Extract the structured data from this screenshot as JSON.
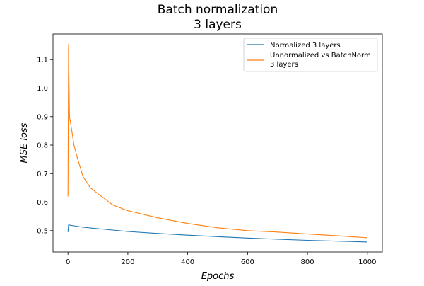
{
  "chart_data": {
    "type": "line",
    "title": "Batch normalization\n3 layers",
    "title_lines": [
      "Batch normalization",
      "3 layers"
    ],
    "xlabel": "Epochs",
    "ylabel": "MSE loss",
    "xlim": [
      -50,
      1050
    ],
    "ylim": [
      0.425,
      1.19
    ],
    "xticks": [
      0,
      200,
      400,
      600,
      800,
      1000
    ],
    "yticks": [
      0.5,
      0.6,
      0.7,
      0.8,
      0.9,
      1.0,
      1.1
    ],
    "ytick_labels": [
      "0.5",
      "0.6",
      "0.7",
      "0.8",
      "0.9",
      "1.0",
      "1.1"
    ],
    "grid": false,
    "legend_position": "top-right",
    "series": [
      {
        "name": "Normalized 3 layers",
        "color": "#1f77b4",
        "x": [
          0,
          2,
          20,
          50,
          100,
          200,
          300,
          400,
          500,
          600,
          700,
          800,
          900,
          1000
        ],
        "y": [
          0.495,
          0.52,
          0.517,
          0.512,
          0.507,
          0.497,
          0.49,
          0.484,
          0.479,
          0.474,
          0.47,
          0.466,
          0.463,
          0.46
        ]
      },
      {
        "name": "Unnormalized vs BatchNorm\n3 layers",
        "legend_lines": [
          "Unnormalized vs BatchNorm",
          "3 layers"
        ],
        "color": "#ff7f0e",
        "x": [
          0,
          2,
          5,
          10,
          20,
          30,
          50,
          75,
          100,
          150,
          200,
          300,
          400,
          500,
          600,
          700,
          800,
          900,
          1000
        ],
        "y": [
          0.62,
          1.155,
          0.9,
          0.87,
          0.8,
          0.76,
          0.69,
          0.65,
          0.63,
          0.59,
          0.57,
          0.545,
          0.525,
          0.51,
          0.5,
          0.495,
          0.488,
          0.482,
          0.475
        ]
      }
    ]
  }
}
